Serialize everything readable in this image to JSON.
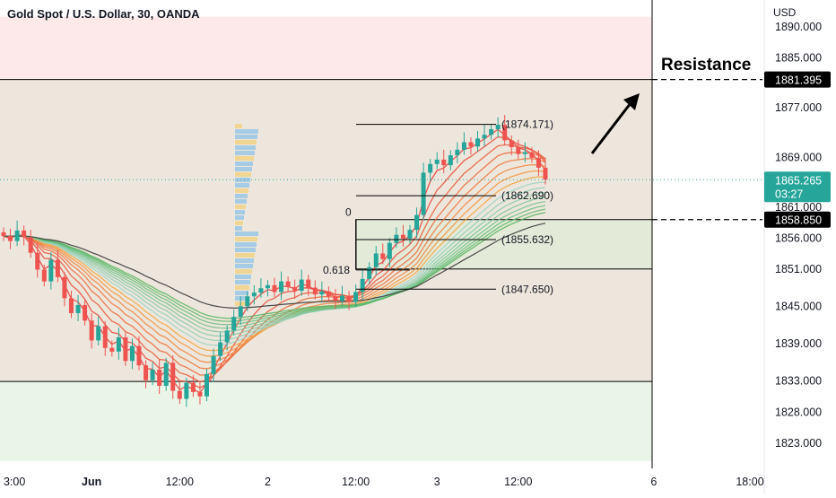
{
  "header": {
    "title": "Gold Spot / U.S. Dollar, 30, OANDA",
    "currency": "USD"
  },
  "chart_data": {
    "type": "candlestick",
    "title": "Gold Spot / U.S. Dollar, 30, OANDA",
    "ylim": [
      1820,
      1891.5
    ],
    "y_ticks": [
      "1890.000",
      "1885.000",
      "1877.000",
      "1869.000",
      "1861.000",
      "1856.000",
      "1851.000",
      "1845.000",
      "1839.000",
      "1833.000",
      "1828.000",
      "1823.000"
    ],
    "y_tick_values": [
      1890,
      1885,
      1877,
      1869,
      1861,
      1856,
      1851,
      1845,
      1839,
      1833,
      1828,
      1823
    ],
    "x_ticks": [
      "3:00",
      "Jun",
      "12:00",
      "2",
      "12:00",
      "3",
      "12:00",
      "6",
      "18:00"
    ],
    "x_tick_index": [
      0,
      13,
      26,
      39,
      52,
      64,
      76,
      96,
      111
    ],
    "price_series": [
      1856.2,
      1855.4,
      1857.1,
      1856.0,
      1853.5,
      1850.8,
      1848.9,
      1852.4,
      1849.6,
      1846.2,
      1843.8,
      1845.1,
      1842.6,
      1839.4,
      1841.7,
      1838.2,
      1837.6,
      1839.9,
      1836.1,
      1838.5,
      1835.4,
      1833.0,
      1834.7,
      1832.1,
      1835.8,
      1831.3,
      1830.0,
      1832.6,
      1831.1,
      1830.4,
      1834.0,
      1836.9,
      1839.1,
      1841.0,
      1843.2,
      1844.9,
      1846.5,
      1847.1,
      1847.8,
      1848.3,
      1847.2,
      1848.9,
      1848.0,
      1847.4,
      1849.2,
      1847.9,
      1846.8,
      1847.3,
      1846.5,
      1845.8,
      1846.6,
      1845.6,
      1847.2,
      1849.3,
      1851.2,
      1853.4,
      1852.5,
      1855.1,
      1856.4,
      1855.8,
      1857.2,
      1859.6,
      1866.4,
      1867.8,
      1868.5,
      1867.6,
      1869.2,
      1870.1,
      1871.3,
      1870.6,
      1871.9,
      1872.5,
      1873.4,
      1874.1,
      1871.6,
      1870.5,
      1869.4,
      1869.7,
      1868.8,
      1867.2,
      1865.3
    ],
    "resistance": {
      "label": "Resistance",
      "value": 1881.395,
      "value_label": "1881.395"
    },
    "support": {
      "value": 1858.85,
      "value_label": "1858.850"
    },
    "current_price": {
      "value": 1865.265,
      "value_label": "1865.265",
      "countdown": "03:27"
    },
    "zone_upper": [
      1881.395,
      1891.5
    ],
    "zone_middle": [
      1832.8,
      1881.395
    ],
    "zone_lower": [
      1820,
      1832.8
    ],
    "fib_levels": [
      {
        "label": "(1874.171)",
        "value": 1874.171
      },
      {
        "label": "(1862.690)",
        "value": 1862.69
      },
      {
        "label": "(1855.632)",
        "value": 1855.632
      },
      {
        "label": "(1847.650)",
        "value": 1847.65
      }
    ],
    "fib_zero": {
      "label": "0",
      "value": 1858.85
    },
    "fib_618": {
      "label": "0.618",
      "value": 1850.75
    },
    "colors": {
      "up": "#26a69a",
      "down": "#ef5350",
      "zone_upper": "#fde8ea",
      "zone_middle": "#ede6dc",
      "zone_lower": "#eaf5e8",
      "ribbon_bear": "#e53935",
      "ribbon_bull": "#4caf50",
      "ma": "#4a4a4a"
    }
  }
}
